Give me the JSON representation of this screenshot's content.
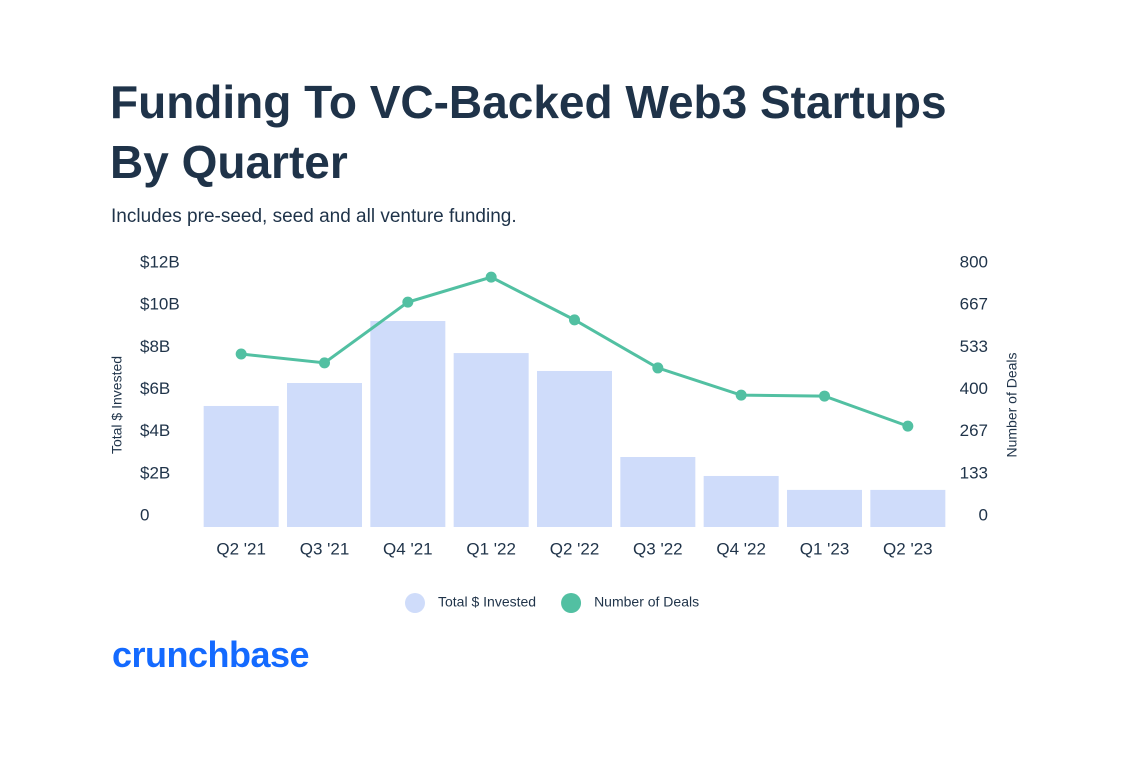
{
  "chart_data": {
    "type": "bar-line",
    "title": "Funding To VC-Backed Web3 Startups By Quarter",
    "subtitle": "Includes pre-seed, seed and all venture funding.",
    "y_label": "Total $ Invested",
    "y2_label": "Number of Deals",
    "categories": [
      "Q2 '21",
      "Q3 '21",
      "Q4 '21",
      "Q1 '22",
      "Q2 '22",
      "Q3 '22",
      "Q4 '22",
      "Q1 '23",
      "Q2 '23"
    ],
    "series": [
      {
        "name": "Total $ Invested",
        "type": "bar",
        "color": "#cfdcfa",
        "values": [
          5.74,
          6.83,
          9.77,
          8.25,
          7.4,
          3.32,
          2.42,
          1.76,
          1.76
        ]
      },
      {
        "name": "Number of Deals",
        "type": "line",
        "axis": "y2",
        "color": "#52c0a2",
        "values": [
          547,
          519,
          711,
          790,
          655,
          503,
          417,
          414,
          319
        ]
      }
    ],
    "ylim": [
      0,
      12
    ],
    "yticks": [
      0,
      {
        "value": 2,
        "label": "$2B"
      },
      {
        "value": 4,
        "label": "$4B"
      },
      {
        "value": 6,
        "label": "$6B"
      },
      {
        "value": 8,
        "label": "$8B"
      },
      {
        "value": 10,
        "label": "$10B"
      },
      {
        "value": 12,
        "label": "$12B"
      }
    ],
    "y2lim": [
      0,
      800
    ],
    "y2ticks": [
      0,
      133,
      267,
      400,
      533,
      667,
      800
    ],
    "legend": "bottom"
  },
  "logo": "crunchbase"
}
